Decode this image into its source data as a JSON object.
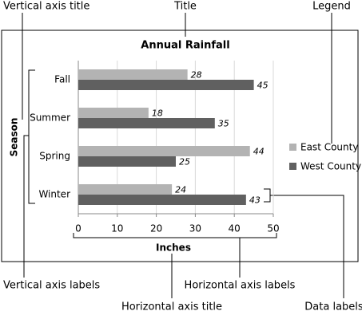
{
  "chart_data": {
    "type": "hbar",
    "title": "Annual Rainfall",
    "categories": [
      "Fall",
      "Summer",
      "Spring",
      "Winter"
    ],
    "series": [
      {
        "name": "East County",
        "color": "#b3b3b3",
        "values": [
          28,
          18,
          44,
          24
        ]
      },
      {
        "name": "West County",
        "color": "#606060",
        "values": [
          45,
          35,
          25,
          43
        ]
      }
    ],
    "xlabel": "Inches",
    "ylabel": "Season",
    "xlim": [
      0,
      50
    ],
    "xticks": [
      0,
      10,
      20,
      30,
      40,
      50
    ],
    "grid": true,
    "legend": "right",
    "annotations": [
      "Vertical axis title",
      "Title",
      "Legend",
      "Vertical axis labels",
      "Horizontal axis labels",
      "Horizontal axis title",
      "Data labels"
    ]
  }
}
